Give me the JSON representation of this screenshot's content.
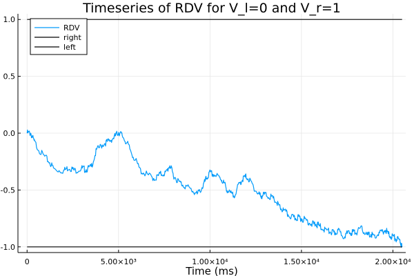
{
  "chart_data": {
    "type": "line",
    "title": "Timeseries of RDV for V_l=0 and V_r=1",
    "xlabel": "Time (ms)",
    "ylabel": "",
    "xlim": [
      -500,
      20700
    ],
    "ylim": [
      -1.05,
      1.05
    ],
    "x_ticks": [
      {
        "value": 0,
        "label": "0"
      },
      {
        "value": 5000,
        "label": "5.00×10³"
      },
      {
        "value": 10000,
        "label": "1.00×10⁴"
      },
      {
        "value": 15000,
        "label": "1.50×10⁴"
      },
      {
        "value": 20000,
        "label": "2.00×10⁴"
      }
    ],
    "y_ticks": [
      {
        "value": 1.0,
        "label": "1.0"
      },
      {
        "value": 0.5,
        "label": "0.5"
      },
      {
        "value": 0.0,
        "label": "0.0"
      },
      {
        "value": -0.5,
        "label": "-0.5"
      },
      {
        "value": -1.0,
        "label": "-1.0"
      }
    ],
    "grid": true,
    "legend_position": "top-left",
    "series": [
      {
        "name": "RDV",
        "color": "#009AFA",
        "x": [
          0,
          200,
          400,
          800,
          1200,
          1500,
          2000,
          2300,
          2600,
          3000,
          3200,
          3500,
          3800,
          4200,
          4500,
          4800,
          5000,
          5200,
          5500,
          5800,
          6200,
          6600,
          7000,
          7300,
          7600,
          7800,
          8000,
          8300,
          8600,
          9000,
          9300,
          9600,
          9800,
          10000,
          10300,
          10600,
          10800,
          11000,
          11300,
          11600,
          11800,
          12000,
          12300,
          12600,
          12800,
          13000,
          13300,
          13600,
          13800,
          14000,
          14300,
          14600,
          14800,
          15000,
          15300,
          15600,
          15800,
          16000,
          16300,
          16600,
          16800,
          17000,
          17300,
          17600,
          17800,
          18000,
          18300,
          18600,
          18800,
          19000,
          19300,
          19600,
          19800,
          20000,
          20200,
          20400,
          20500
        ],
        "y": [
          0.0,
          0.0,
          -0.08,
          -0.18,
          -0.25,
          -0.32,
          -0.33,
          -0.3,
          -0.33,
          -0.31,
          -0.32,
          -0.3,
          -0.15,
          -0.09,
          -0.07,
          -0.03,
          0.01,
          -0.02,
          -0.1,
          -0.2,
          -0.33,
          -0.37,
          -0.4,
          -0.36,
          -0.35,
          -0.28,
          -0.37,
          -0.43,
          -0.46,
          -0.5,
          -0.54,
          -0.47,
          -0.4,
          -0.35,
          -0.37,
          -0.4,
          -0.45,
          -0.52,
          -0.55,
          -0.45,
          -0.4,
          -0.38,
          -0.45,
          -0.53,
          -0.55,
          -0.54,
          -0.56,
          -0.6,
          -0.65,
          -0.68,
          -0.72,
          -0.75,
          -0.74,
          -0.75,
          -0.77,
          -0.8,
          -0.8,
          -0.82,
          -0.85,
          -0.87,
          -0.88,
          -0.86,
          -0.9,
          -0.88,
          -0.87,
          -0.87,
          -0.84,
          -0.9,
          -0.89,
          -0.91,
          -0.88,
          -0.85,
          -0.9,
          -0.91,
          -0.93,
          -0.95,
          -1.0
        ]
      },
      {
        "name": "right",
        "color": "#000000",
        "x": [
          0,
          20500
        ],
        "y": [
          1.0,
          1.0
        ]
      },
      {
        "name": "left",
        "color": "#000000",
        "x": [
          0,
          20500
        ],
        "y": [
          -1.0,
          -1.0
        ]
      }
    ]
  }
}
